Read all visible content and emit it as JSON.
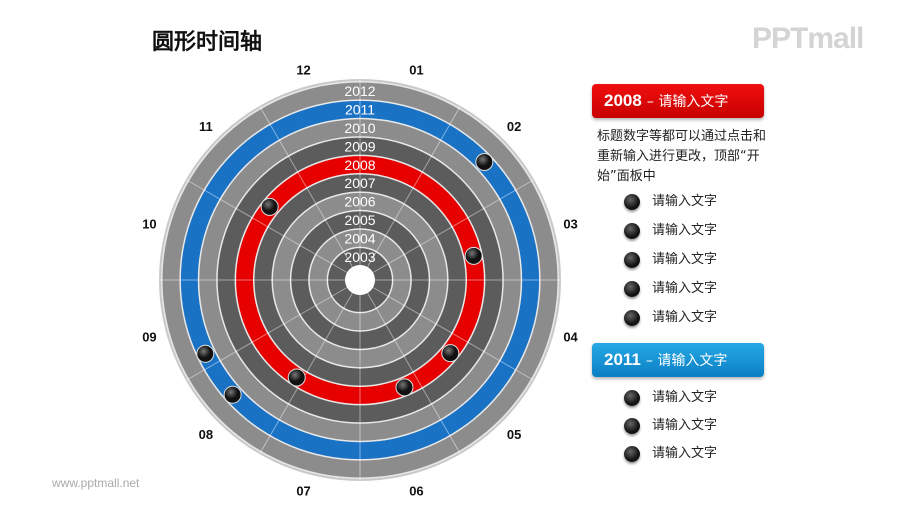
{
  "title": "圆形时间轴",
  "logo": "PPTmall",
  "site": "www.pptmall.net",
  "colors": {
    "light_ring": "#8c8c8c",
    "dark_ring": "#5c5c5c",
    "highlight_red": "#e60000",
    "highlight_blue": "#1a72c4"
  },
  "wheel": {
    "years": [
      "2003",
      "2004",
      "2005",
      "2006",
      "2007",
      "2008",
      "2009",
      "2010",
      "2011",
      "2012"
    ],
    "highlight": {
      "2008": "red",
      "2011": "blue"
    },
    "months": [
      "01",
      "02",
      "03",
      "04",
      "05",
      "06",
      "07",
      "08",
      "09",
      "10",
      "11",
      "12"
    ],
    "markers": [
      {
        "year": "2011",
        "month_pos": 1.55
      },
      {
        "year": "2011",
        "month_pos": 7.6
      },
      {
        "year": "2011",
        "month_pos": 8.15
      },
      {
        "year": "2008",
        "month_pos": 2.6
      },
      {
        "year": "2008",
        "month_pos": 4.3
      },
      {
        "year": "2008",
        "month_pos": 5.25
      },
      {
        "year": "2008",
        "month_pos": 7.1
      },
      {
        "year": "2008",
        "month_pos": 10.3
      }
    ]
  },
  "panel_2008": {
    "year": "2008",
    "label": "– 请输入文字",
    "description": "标题数字等都可以通过点击和重新输入进行更改，顶部“开始”面板中",
    "items": [
      "请输入文字",
      "请输入文字",
      "请输入文字",
      "请输入文字",
      "请输入文字"
    ]
  },
  "panel_2011": {
    "year": "2011",
    "label": "– 请输入文字",
    "items": [
      "请输入文字",
      "请输入文字",
      "请输入文字"
    ]
  }
}
